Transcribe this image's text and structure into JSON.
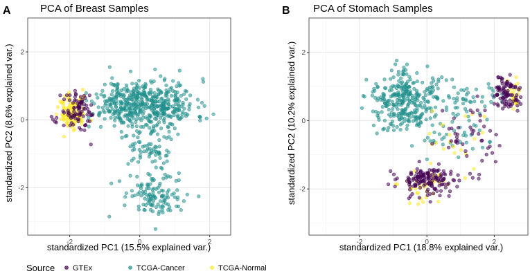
{
  "colors": {
    "gtex": "#440154",
    "tcga_cancer": "#21908C",
    "tcga_normal": "#FDE725",
    "grid_major": "#E6E6E6",
    "grid_minor": "#F2F2F2",
    "axis_text": "#4D4D4D",
    "panel_border": "#333333"
  },
  "legend": {
    "title": "Source",
    "items": [
      {
        "label": "GTEx",
        "color": "#440154"
      },
      {
        "label": "TCGA-Cancer",
        "color": "#21908C"
      },
      {
        "label": "TCGA-Normal",
        "color": "#FDE725"
      }
    ]
  },
  "chart_data": [
    {
      "type": "scatter",
      "panel_label": "A",
      "title": "PCA of Breast Samples",
      "xlabel": "standardized PC1 (15.5% explained var.)",
      "ylabel": "standardized PC2 (8.6% explained var.)",
      "xlim": [
        -3.2,
        2.6
      ],
      "ylim": [
        -3.4,
        3.0
      ],
      "xticks": [
        -2,
        0,
        2
      ],
      "yticks": [
        -2,
        0,
        2
      ],
      "xtick_labels": [
        "-2",
        "0",
        "2"
      ],
      "ytick_labels": [
        "-2",
        "0",
        "2"
      ],
      "clusters": [
        {
          "series": "TCGA-Cancer",
          "n": 420,
          "cx": 0.3,
          "cy": 0.45,
          "sx": 0.65,
          "sy": 0.38,
          "seed": 11
        },
        {
          "series": "TCGA-Cancer",
          "n": 90,
          "cx": -0.6,
          "cy": 0.45,
          "sx": 0.35,
          "sy": 0.3,
          "seed": 12
        },
        {
          "series": "TCGA-Cancer",
          "n": 80,
          "cx": 0.3,
          "cy": -1.0,
          "sx": 0.35,
          "sy": 0.45,
          "seed": 13
        },
        {
          "series": "TCGA-Cancer",
          "n": 110,
          "cx": 0.5,
          "cy": -2.25,
          "sx": 0.45,
          "sy": 0.3,
          "seed": 14
        },
        {
          "series": "GTEx",
          "n": 90,
          "cx": -1.75,
          "cy": 0.2,
          "sx": 0.25,
          "sy": 0.3,
          "seed": 21
        },
        {
          "series": "TCGA-Normal",
          "n": 110,
          "cx": -1.95,
          "cy": 0.2,
          "sx": 0.2,
          "sy": 0.28,
          "seed": 31
        }
      ]
    },
    {
      "type": "scatter",
      "panel_label": "B",
      "title": "PCA of Stomach Samples",
      "xlabel": "standardized PC1 (18.8% explained var.)",
      "ylabel": "standardized PC2 (10.2% explained var.)",
      "xlim": [
        -3.5,
        3.0
      ],
      "ylim": [
        -3.35,
        3.0
      ],
      "xticks": [
        -2,
        0,
        2
      ],
      "yticks": [
        -2,
        0,
        2
      ],
      "xtick_labels": [
        "-2",
        "0",
        "2"
      ],
      "ytick_labels": [
        "-2",
        "0",
        "2"
      ],
      "clusters": [
        {
          "series": "TCGA-Cancer",
          "n": 320,
          "cx": -0.6,
          "cy": 0.55,
          "sx": 0.55,
          "sy": 0.45,
          "seed": 41
        },
        {
          "series": "TCGA-Cancer",
          "n": 45,
          "cx": 1.1,
          "cy": 0.7,
          "sx": 0.6,
          "sy": 0.25,
          "seed": 42
        },
        {
          "series": "TCGA-Cancer",
          "n": 30,
          "cx": 0.8,
          "cy": -0.4,
          "sx": 0.5,
          "sy": 0.4,
          "seed": 43
        },
        {
          "series": "GTEx",
          "n": 90,
          "cx": 2.35,
          "cy": 0.8,
          "sx": 0.22,
          "sy": 0.25,
          "seed": 51
        },
        {
          "series": "GTEx",
          "n": 45,
          "cx": 1.3,
          "cy": -0.6,
          "sx": 0.45,
          "sy": 0.55,
          "seed": 52
        },
        {
          "series": "GTEx",
          "n": 150,
          "cx": 0.05,
          "cy": -1.75,
          "sx": 0.45,
          "sy": 0.22,
          "seed": 53
        },
        {
          "series": "TCGA-Normal",
          "n": 25,
          "cx": 2.55,
          "cy": 0.8,
          "sx": 0.12,
          "sy": 0.25,
          "seed": 61
        },
        {
          "series": "TCGA-Normal",
          "n": 20,
          "cx": 0.8,
          "cy": -0.6,
          "sx": 0.4,
          "sy": 0.5,
          "seed": 62
        },
        {
          "series": "TCGA-Normal",
          "n": 35,
          "cx": -0.2,
          "cy": -1.9,
          "sx": 0.35,
          "sy": 0.3,
          "seed": 63
        }
      ]
    }
  ]
}
